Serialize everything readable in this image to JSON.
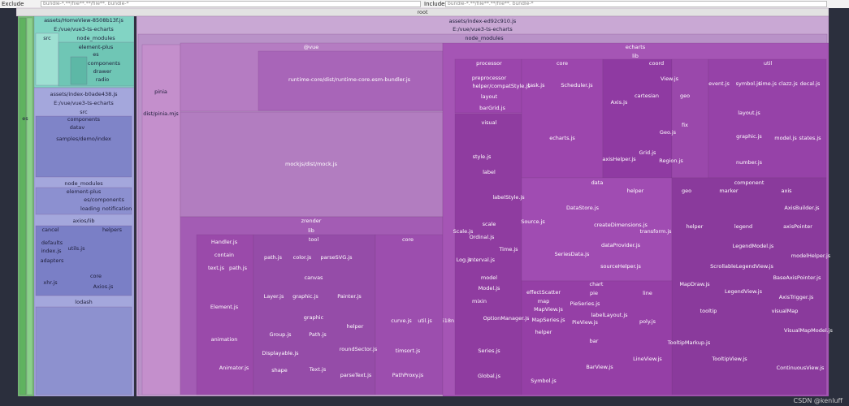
{
  "header": {
    "exclude_label": "Exclude",
    "exclude_filter": "bundle-*.**/file**.**/file**. bundle-*",
    "include_label": "Include",
    "include_filter": "bundle-*.**/file**.**/file**. bundle-*"
  },
  "treemap": {
    "root": "root",
    "labels": [
      "assets/HomeView-8508b13f.js",
      "E:/vue/vue3-ts-echarts",
      "src",
      "node_modules",
      "element-plus",
      "es",
      "components",
      "drawer",
      "radio",
      "es",
      "assets/index-b0ade438.js",
      "E:/vue/vue3-ts-echarts",
      "src",
      "components",
      "datav",
      "samples/demo/index",
      "node_modules",
      "element-plus",
      "es/components",
      "loading",
      "notification",
      "axios/lib",
      "cancel",
      "helpers",
      "defaults",
      "index.js",
      "utils.js",
      "adapters",
      "core",
      "xhr.js",
      "Axios.js",
      "lodash",
      "assets/index-ed92c910.js",
      "E:/vue/vue3-ts-echarts",
      "node_modules",
      "pinia",
      "dist/pinia.mjs",
      "@vue",
      "runtime-core/dist/runtime-core.esm-bundler.js",
      "mockjs/dist/mock.js",
      "zrender",
      "lib",
      "Handler.js",
      "contain",
      "text.js",
      "path.js",
      "Element.js",
      "animation",
      "Animator.js",
      "tool",
      "path.js",
      "color.js",
      "parseSVG.js",
      "core",
      "canvas",
      "Layer.js",
      "graphic.js",
      "Painter.js",
      "graphic",
      "Group.js",
      "Displayable.js",
      "shape",
      "Path.js",
      "Text.js",
      "helper",
      "roundSector.js",
      "parseText.js",
      "curve.js",
      "util.js",
      "timsort.js",
      "PathProxy.js",
      "echarts",
      "lib",
      "processor",
      "preprocessor",
      "helper/compatStyle.js",
      "layout",
      "barGrid.js",
      "visual",
      "style.js",
      "label",
      "labelStyle.js",
      "scale",
      "Scale.js",
      "Ordinal.js",
      "Log.js",
      "Interval.js",
      "Time.js",
      "model",
      "Model.js",
      "mixin",
      "OptionManager.js",
      "Series.js",
      "Global.js",
      "i18n",
      "core",
      "task.js",
      "Scheduler.js",
      "echarts.js",
      "coord",
      "View.js",
      "cartesian",
      "geo",
      "Axis.js",
      "fix",
      "Geo.js",
      "Grid.js",
      "axisHelper.js",
      "Region.js",
      "util",
      "event.js",
      "symbol.js",
      "time.js",
      "clazz.js",
      "decal.js",
      "layout.js",
      "graphic.js",
      "model.js",
      "states.js",
      "number.js",
      "data",
      "DataStore.js",
      "Source.js",
      "SeriesData.js",
      "helper",
      "createDimensions.js",
      "transform.js",
      "dataProvider.js",
      "sourceHelper.js",
      "component",
      "geo",
      "marker",
      "axis",
      "AxisBuilder.js",
      "helper",
      "legend",
      "axisPointer",
      "LegendModel.js",
      "modelHelper.js",
      "ScrollableLegendView.js",
      "MapDraw.js",
      "BaseAxisPointer.js",
      "LegendView.js",
      "AxisTrigger.js",
      "tooltip",
      "visualMap",
      "TooltipMarkup.js",
      "TooltipView.js",
      "VisualMapModel.js",
      "ContinuousView.js",
      "chart",
      "effectScatter",
      "pie",
      "line",
      "map",
      "MapView.js",
      "MapSeries.js",
      "PieSeries.js",
      "labelLayout.js",
      "PieView.js",
      "poly.js",
      "helper",
      "bar",
      "BarView.js",
      "LineView.js",
      "Symbol.js"
    ]
  },
  "watermark": "CSDN @kenluff"
}
